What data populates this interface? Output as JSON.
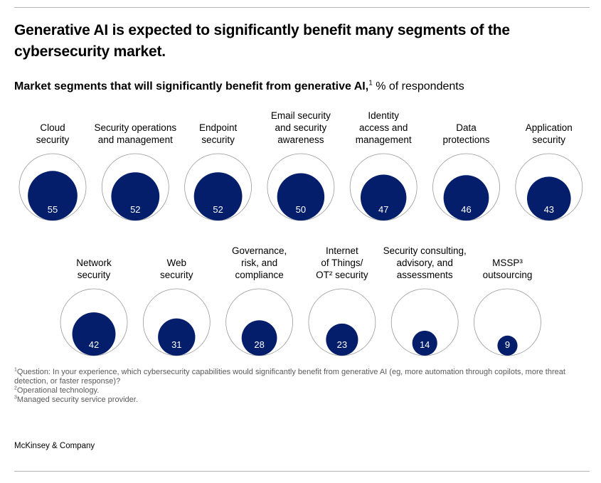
{
  "title": "Generative AI is expected to significantly benefit many segments of the cybersecurity market.",
  "subtitle": {
    "bold": "Market segments that will significantly benefit from generative AI,",
    "marker": "1",
    "regular": " % of respondents"
  },
  "chart_data": {
    "type": "bubble",
    "value_unit": "% of respondents",
    "max_value": 100,
    "colors": {
      "fill": "#041E6B",
      "outline": "#9a9a9a",
      "value_text": "#ffffff",
      "label_text": "#000000"
    },
    "segments": [
      {
        "label_lines": [
          "Cloud",
          "security"
        ],
        "value": 55
      },
      {
        "label_lines": [
          "Security operations",
          "and management"
        ],
        "value": 52
      },
      {
        "label_lines": [
          "Endpoint",
          "security"
        ],
        "value": 52
      },
      {
        "label_lines": [
          "Email security",
          "and security",
          "awareness"
        ],
        "value": 50
      },
      {
        "label_lines": [
          "Identity",
          "access and",
          "management"
        ],
        "value": 47
      },
      {
        "label_lines": [
          "Data",
          "protections"
        ],
        "value": 46
      },
      {
        "label_lines": [
          "Application",
          "security"
        ],
        "value": 43
      },
      {
        "label_lines": [
          "Network",
          "security"
        ],
        "value": 42
      },
      {
        "label_lines": [
          "Web",
          "security"
        ],
        "value": 31
      },
      {
        "label_lines": [
          "Governance,",
          "risk, and",
          "compliance"
        ],
        "value": 28
      },
      {
        "label_lines": [
          "Internet",
          "of Things/",
          "OT² security"
        ],
        "value": 23
      },
      {
        "label_lines": [
          "Security consulting,",
          "advisory, and",
          "assessments"
        ],
        "value": 14
      },
      {
        "label_lines": [
          "MSSP³",
          "outsourcing"
        ],
        "value": 9
      }
    ]
  },
  "footnotes": [
    {
      "marker": "1",
      "text": "Question: In your experience, which cybersecurity capabilities would significantly benefit from generative AI (eg, more automation through copilots, more threat detection, or faster response)?"
    },
    {
      "marker": "2",
      "text": "Operational technology."
    },
    {
      "marker": "3",
      "text": "Managed security service provider."
    }
  ],
  "source": "McKinsey & Company"
}
